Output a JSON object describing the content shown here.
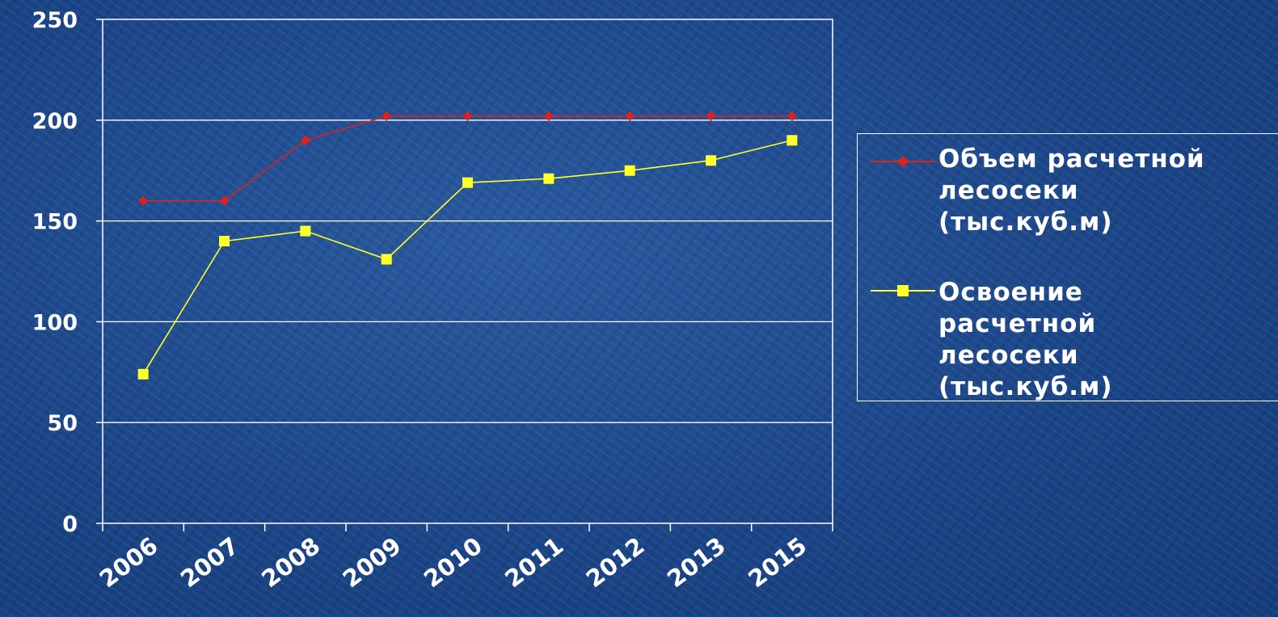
{
  "chart_data": {
    "type": "line",
    "categories": [
      "2006",
      "2007",
      "2008",
      "2009",
      "2010",
      "2011",
      "2012",
      "2013",
      "2015"
    ],
    "series": [
      {
        "name": "Объем расчетной лесосеки (тыс.куб.м)",
        "color": "#e0201a",
        "marker": "diamond",
        "values": [
          160,
          160,
          190,
          202,
          202,
          202,
          202,
          202,
          202
        ]
      },
      {
        "name": "Освоение расчетной лесосеки (тыс.куб.м)",
        "color": "#ffff2a",
        "marker": "square",
        "values": [
          74,
          140,
          145,
          131,
          169,
          171,
          175,
          180,
          190
        ]
      }
    ],
    "yticks": [
      "0",
      "50",
      "100",
      "150",
      "200",
      "250"
    ],
    "ylim": [
      0,
      250
    ],
    "title": "",
    "xlabel": "",
    "ylabel": "",
    "grid": true,
    "legend_position": "right"
  },
  "legend": {
    "items": [
      {
        "label": "Объем расчетной\nлесосеки\n(тыс.куб.м)"
      },
      {
        "label": "Освоение\nрасчетной\nлесосеки\n(тыс.куб.м)"
      }
    ]
  }
}
